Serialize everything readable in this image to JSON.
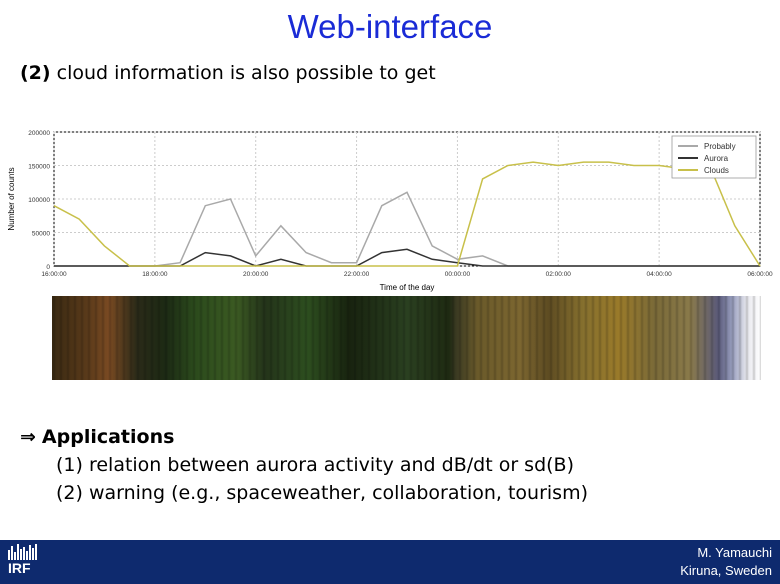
{
  "slide": {
    "title": "Web-interface",
    "subtitle_num": "(2)",
    "subtitle_text": "cloud information is also possible to get"
  },
  "applications": {
    "head": "Applications",
    "items": [
      "(1) relation between aurora activity  and  dB/dt  or  sd(B)",
      "(2) warning (e.g., spaceweather, collaboration, tourism)"
    ]
  },
  "footer": {
    "logo_text": "IRF",
    "author": "M. Yamauchi",
    "location": "Kiruna, Sweden"
  },
  "chart_data": {
    "type": "line",
    "title": "",
    "xlabel": "Time of the day",
    "ylabel": "Number of counts",
    "xticks": [
      "16:00:00",
      "18:00:00",
      "20:00:00",
      "22:00:00",
      "00:00:00",
      "02:00:00",
      "04:00:00",
      "06:00:00"
    ],
    "yticks": [
      "0",
      "50000",
      "100000",
      "150000",
      "200000"
    ],
    "ylim": [
      0,
      200000
    ],
    "grid": true,
    "legend_placement": "top-right",
    "x_hours_since_1600": [
      0,
      0.5,
      1,
      1.5,
      2,
      2.5,
      3,
      3.5,
      4,
      4.5,
      5,
      5.5,
      6,
      6.5,
      7,
      7.5,
      8,
      8.5,
      9,
      9.5,
      10,
      10.5,
      11,
      11.5,
      12,
      12.5,
      13,
      13.5,
      14
    ],
    "series": [
      {
        "name": "Probably",
        "color": "#a9a9a9",
        "values": [
          0,
          0,
          0,
          0,
          0,
          5000,
          90000,
          100000,
          15000,
          60000,
          20000,
          5000,
          5000,
          90000,
          110000,
          30000,
          10000,
          15000,
          0,
          0,
          0,
          0,
          0,
          0,
          0,
          0,
          0,
          0,
          0
        ]
      },
      {
        "name": "Aurora",
        "color": "#333333",
        "values": [
          0,
          0,
          0,
          0,
          0,
          0,
          20000,
          15000,
          0,
          10000,
          0,
          0,
          0,
          20000,
          25000,
          10000,
          5000,
          0,
          0,
          0,
          0,
          0,
          0,
          0,
          0,
          0,
          0,
          0,
          0
        ]
      },
      {
        "name": "Clouds",
        "color": "#c8c04a",
        "values": [
          90000,
          70000,
          30000,
          0,
          0,
          0,
          0,
          0,
          0,
          0,
          0,
          0,
          0,
          0,
          0,
          0,
          0,
          130000,
          150000,
          155000,
          150000,
          155000,
          155000,
          150000,
          150000,
          145000,
          150000,
          60000,
          0
        ]
      }
    ]
  }
}
